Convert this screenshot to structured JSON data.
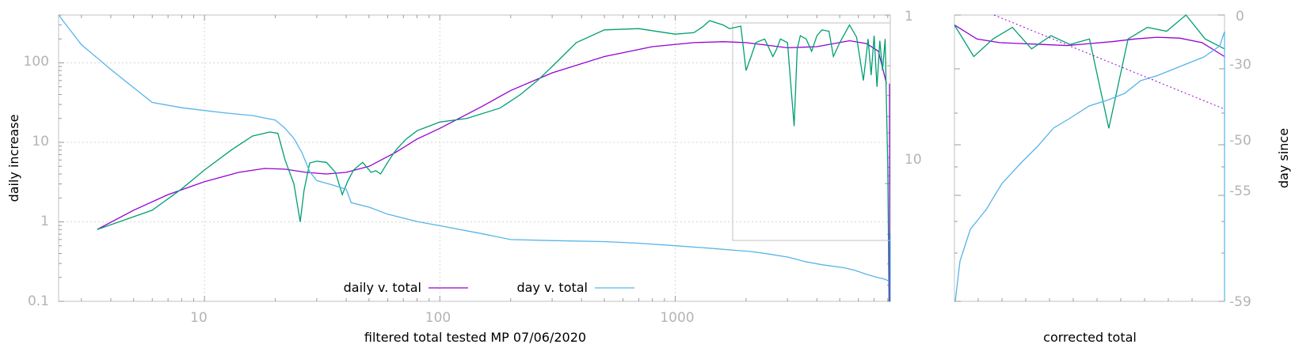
{
  "colors": {
    "daily": "#9400d3",
    "day": "#56b4e9",
    "green": "#009e73",
    "axis": "#b4b4b4"
  },
  "chart_data": [
    {
      "type": "line",
      "xscale": "log",
      "yscale": "log",
      "y2scale": "log",
      "xlim": [
        2.4,
        8200
      ],
      "ylim": [
        0.1,
        400
      ],
      "y2lim": [
        1,
        50
      ],
      "y2_reversed": true,
      "xlabel": "filtered total tested MP 07/06/2020",
      "ylabel": "daily increase",
      "x_ticks": [
        "10",
        "100",
        "1000"
      ],
      "y_ticks": [
        "0.1",
        "1",
        "10",
        "100"
      ],
      "y2_ticks": [
        "1",
        "10"
      ],
      "grid": true,
      "legend_position": "bottom-center",
      "series": [
        {
          "name": "daily v. total",
          "color": "#9400d3",
          "axis": "y",
          "x": [
            3.5,
            5,
            7,
            10,
            14,
            18,
            22,
            27,
            33,
            40,
            50,
            65,
            80,
            100,
            150,
            200,
            300,
            500,
            800,
            1200,
            1600,
            2000,
            3000,
            4000,
            5500,
            6500,
            7300,
            7900
          ],
          "y": [
            0.8,
            1.4,
            2.2,
            3.2,
            4.2,
            4.7,
            4.6,
            4.2,
            4.0,
            4.2,
            5.0,
            7.5,
            11,
            15,
            28,
            45,
            75,
            120,
            160,
            180,
            185,
            180,
            155,
            160,
            190,
            175,
            140,
            55
          ]
        },
        {
          "axis": "y",
          "color": "#009e73",
          "x": [
            3.5,
            6,
            8,
            10,
            13,
            16,
            19,
            20.5,
            22,
            24,
            25.5,
            26.5,
            28,
            30,
            33,
            36,
            38.5,
            40.5,
            43,
            47,
            51,
            53.5,
            56,
            60,
            64,
            67,
            72,
            80,
            90,
            100,
            130,
            180,
            220,
            260,
            300,
            380,
            500,
            700,
            1000,
            1200,
            1300,
            1400,
            1600,
            1700,
            1800,
            1900,
            2000,
            2100,
            2200,
            2400,
            2600,
            2700,
            2800,
            3000,
            3200,
            3300,
            3400,
            3600,
            3800,
            4000,
            4200,
            4500,
            4700,
            5000,
            5500,
            5900,
            6300,
            6600,
            6800,
            7000,
            7200,
            7400,
            7600,
            7800,
            8000,
            8100
          ],
          "y": [
            0.8,
            1.4,
            2.6,
            4.5,
            8.0,
            12,
            13.5,
            13,
            6,
            3,
            1.0,
            2.5,
            5.5,
            5.8,
            5.6,
            4.2,
            2.2,
            3.2,
            4.5,
            5.6,
            4.2,
            4.4,
            4.0,
            5.6,
            7.5,
            8.8,
            11,
            14,
            16,
            18,
            20,
            27,
            40,
            60,
            90,
            180,
            260,
            270,
            230,
            240,
            280,
            340,
            300,
            270,
            280,
            290,
            80,
            120,
            180,
            200,
            120,
            150,
            200,
            180,
            16,
            150,
            220,
            200,
            140,
            220,
            260,
            250,
            120,
            180,
            300,
            210,
            60,
            200,
            70,
            220,
            50,
            190,
            80,
            200,
            5,
            0.1
          ]
        },
        {
          "name": "day v. total",
          "color": "#56b4e9",
          "axis": "y2",
          "x": [
            2.4,
            3,
            4,
            5,
            6,
            8,
            12,
            16,
            20,
            22,
            24,
            26,
            28,
            30,
            35,
            40,
            42,
            50,
            60,
            80,
            100,
            150,
            200,
            300,
            500,
            700,
            1000,
            1400,
            1800,
            2100,
            2500,
            3000,
            3300,
            3500,
            4200,
            5200,
            5800,
            6500,
            7200,
            7800,
            8100
          ],
          "y": [
            1,
            1.5,
            2.1,
            2.7,
            3.3,
            3.55,
            3.8,
            3.95,
            4.2,
            4.7,
            5.4,
            6.6,
            8.5,
            9.6,
            10.2,
            10.8,
            13,
            13.8,
            15.2,
            16.8,
            17.8,
            19.8,
            21.5,
            21.8,
            22.1,
            22.6,
            23.4,
            24.2,
            24.9,
            25.3,
            26.2,
            27.3,
            28.2,
            28.9,
            30.3,
            31.6,
            32.7,
            34.6,
            36.0,
            37.0,
            38.0
          ]
        }
      ]
    },
    {
      "type": "line",
      "xlabel": "corrected total",
      "y2label": "day since",
      "y2_ticks": [
        "0",
        "-30",
        "-50",
        "-55",
        "-59"
      ],
      "series": [
        {
          "color": "#9400d3",
          "y": [
            300,
            200,
            180,
            175,
            170,
            165,
            175,
            185,
            200,
            210,
            205,
            180,
            120
          ]
        },
        {
          "color": "#009e73",
          "y": [
            300,
            120,
            200,
            280,
            150,
            220,
            170,
            200,
            15,
            200,
            280,
            250,
            400,
            200,
            150
          ]
        },
        {
          "color": "#56b4e9"
        },
        {
          "color": "#9400d3"
        }
      ]
    }
  ]
}
